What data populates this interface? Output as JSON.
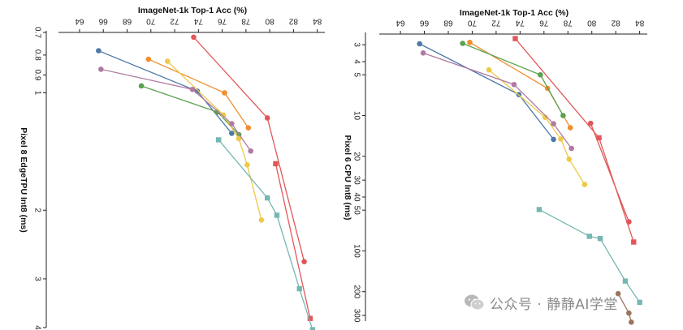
{
  "chart_data": [
    {
      "type": "scatter",
      "title": "",
      "xlabel": "ImageNet-1k Top-1 Acc (%)",
      "ylabel": "Pixel 8 EdgeTPU Int8 (ms)",
      "xlim": [
        62.5,
        84.5
      ],
      "ylim": [
        0.7,
        4.0
      ],
      "yscale": "log",
      "x_axis_position": "top",
      "grid": false,
      "legend": "none",
      "xticks": [
        64,
        66,
        68,
        70,
        72,
        74,
        76,
        78,
        80,
        82,
        84
      ],
      "yticks": [
        0.7,
        0.8,
        0.9,
        1,
        2,
        3,
        4
      ],
      "ytick_labels": [
        "0.7",
        "0.8",
        "0.9",
        "1",
        "2",
        "3",
        "4"
      ],
      "series": [
        {
          "color": "#4e79a7",
          "marker": "circle",
          "points": [
            [
              65.6,
              0.78
            ],
            [
              73.9,
              0.99
            ],
            [
              76.8,
              1.27
            ]
          ]
        },
        {
          "color": "#f28e2b",
          "marker": "circle",
          "points": [
            [
              69.8,
              0.82
            ],
            [
              76.2,
              1.0
            ],
            [
              78.2,
              1.23
            ]
          ]
        },
        {
          "color": "#59a14f",
          "marker": "circle",
          "points": [
            [
              69.2,
              0.96
            ],
            [
              75.6,
              1.12
            ],
            [
              77.4,
              1.28
            ]
          ]
        },
        {
          "color": "#edc948",
          "marker": "circle",
          "points": [
            [
              71.4,
              0.83
            ],
            [
              76.1,
              1.14
            ],
            [
              77.4,
              1.31
            ],
            [
              78.1,
              1.53
            ],
            [
              79.3,
              2.12
            ]
          ]
        },
        {
          "color": "#b07aa1",
          "marker": "circle",
          "points": [
            [
              65.8,
              0.87
            ],
            [
              73.5,
              0.98
            ],
            [
              76.8,
              1.2
            ],
            [
              78.4,
              1.41
            ]
          ]
        },
        {
          "color": "#e15759",
          "marker": "circle",
          "points": [
            [
              73.6,
              0.72
            ],
            [
              79.8,
              1.16
            ],
            [
              82.9,
              2.71
            ]
          ]
        },
        {
          "color": "#e15759",
          "marker": "square",
          "points": [
            [
              80.5,
              1.52
            ],
            [
              83.4,
              3.79
            ]
          ]
        },
        {
          "color": "#76b7b2",
          "marker": "square",
          "points": [
            [
              75.7,
              1.32
            ],
            [
              79.8,
              1.86
            ],
            [
              80.6,
              2.06
            ],
            [
              82.5,
              3.18
            ],
            [
              83.6,
              4.05
            ]
          ]
        }
      ]
    },
    {
      "type": "scatter",
      "title": "",
      "xlabel": "ImageNet-1k Top-1 Acc (%)",
      "ylabel": "Pixel 6 CPU Int8 (ms)",
      "xlim": [
        62.5,
        84.5
      ],
      "ylim": [
        2.5,
        330
      ],
      "yscale": "log",
      "x_axis_position": "top",
      "grid": false,
      "legend": "none",
      "xticks": [
        64,
        66,
        68,
        70,
        72,
        74,
        76,
        78,
        80,
        82,
        84
      ],
      "yticks": [
        3,
        4,
        5,
        10,
        20,
        30,
        40,
        50,
        100,
        200,
        300
      ],
      "ytick_labels": [
        "3",
        "4",
        "5",
        "10",
        "20",
        "30",
        "40",
        "50",
        "100",
        "200",
        "300"
      ],
      "series": [
        {
          "color": "#4e79a7",
          "marker": "circle",
          "points": [
            [
              65.6,
              2.95
            ],
            [
              73.9,
              7.0
            ],
            [
              76.8,
              15.0
            ]
          ]
        },
        {
          "color": "#f28e2b",
          "marker": "circle",
          "points": [
            [
              69.8,
              2.88
            ],
            [
              76.3,
              6.3
            ],
            [
              78.2,
              12.3
            ]
          ]
        },
        {
          "color": "#59a14f",
          "marker": "circle",
          "points": [
            [
              69.2,
              2.93
            ],
            [
              75.7,
              5.0
            ],
            [
              77.6,
              10.0
            ]
          ]
        },
        {
          "color": "#edc948",
          "marker": "circle",
          "points": [
            [
              71.4,
              4.6
            ],
            [
              76.1,
              10.3
            ],
            [
              77.4,
              14.9
            ],
            [
              78.1,
              21.0
            ],
            [
              79.4,
              32.3
            ]
          ]
        },
        {
          "color": "#b07aa1",
          "marker": "circle",
          "points": [
            [
              65.9,
              3.45
            ],
            [
              73.5,
              5.9
            ],
            [
              76.8,
              11.5
            ],
            [
              78.3,
              17.5
            ]
          ]
        },
        {
          "color": "#e15759",
          "marker": "square",
          "points": [
            [
              73.6,
              2.7
            ],
            [
              80.6,
              14.6
            ],
            [
              83.5,
              86.0
            ]
          ]
        },
        {
          "color": "#e15759",
          "marker": "circle",
          "points": [
            [
              79.9,
              11.4
            ],
            [
              83.1,
              61.0
            ]
          ]
        },
        {
          "color": "#76b7b2",
          "marker": "square",
          "points": [
            [
              75.6,
              49.5
            ],
            [
              79.8,
              78.0
            ],
            [
              80.7,
              81.0
            ],
            [
              82.8,
              167.0
            ],
            [
              84.0,
              240.0
            ]
          ]
        },
        {
          "color": "#9c755f",
          "marker": "circle",
          "points": [
            [
              82.2,
              207.0
            ],
            [
              83.1,
              288.0
            ],
            [
              83.3,
              336.0
            ]
          ]
        }
      ]
    }
  ],
  "watermark": {
    "text": "公众号 · 静静AI学堂",
    "icon": "wechat-icon"
  }
}
